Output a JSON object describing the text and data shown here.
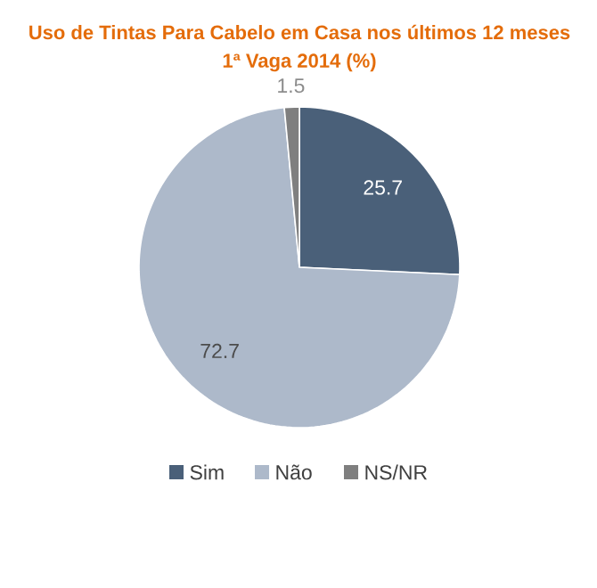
{
  "chart_data": {
    "type": "pie",
    "title": "Uso de Tintas Para Cabelo em Casa nos últimos 12 meses",
    "subtitle": "1ª Vaga 2014 (%)",
    "categories": [
      "Sim",
      "Não",
      "NS/NR"
    ],
    "values": [
      25.7,
      72.7,
      1.5
    ],
    "colors": [
      "#4a6079",
      "#adb9ca",
      "#7f7f7f"
    ],
    "data_labels": true,
    "legend": "bottom"
  }
}
